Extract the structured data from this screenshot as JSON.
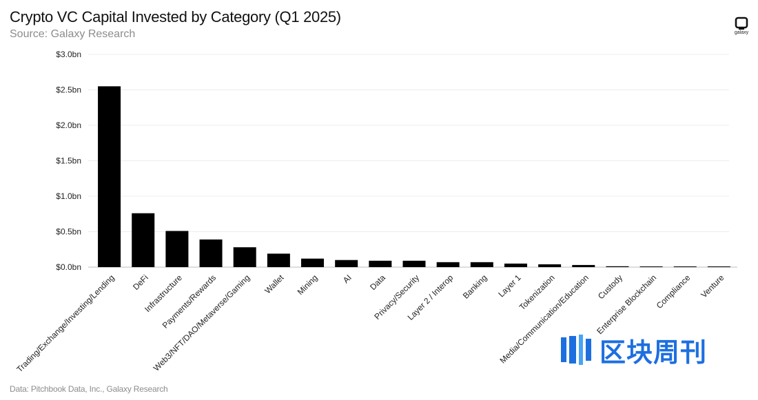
{
  "header": {
    "title": "Crypto VC Capital Invested by Category (Q1 2025)",
    "subtitle": "Source: Galaxy Research"
  },
  "footer": {
    "note": "Data: Pitchbook Data, Inc., Galaxy Research"
  },
  "brand": {
    "logo_label": "galaxy",
    "logo_icon": "galaxy-logo-icon",
    "watermark_text": "区块周刊",
    "watermark_icon": "blockweekly-logo-icon",
    "watermark_color": "#1d6fe0"
  },
  "chart_data": {
    "type": "bar",
    "y_tick_labels": [
      "$0.0bn",
      "$0.5bn",
      "$1.0bn",
      "$1.5bn",
      "$2.0bn",
      "$2.5bn",
      "$3.0bn"
    ],
    "y_ticks": [
      0,
      0.5,
      1.0,
      1.5,
      2.0,
      2.5,
      3.0
    ],
    "ylim": [
      0,
      3.0
    ],
    "grid": true,
    "bar_color": "#000000",
    "categories": [
      "Trading/Exchange/Investing/Lending",
      "DeFi",
      "Infrastructure",
      "Payments/Rewards",
      "Web3/NFT/DAO/Metaverse/Gaming",
      "Wallet",
      "Mining",
      "AI",
      "Data",
      "Privacy/Security",
      "Layer 2 / Interop",
      "Banking",
      "Layer 1",
      "Tokenization",
      "Media/Communication/Education",
      "Custody",
      "Enterprise Blockchain",
      "Compliance",
      "Venture"
    ],
    "values": [
      2.55,
      0.76,
      0.51,
      0.39,
      0.28,
      0.19,
      0.12,
      0.1,
      0.09,
      0.09,
      0.07,
      0.07,
      0.05,
      0.04,
      0.03,
      0.012,
      0.008,
      0.007,
      0.006
    ]
  }
}
